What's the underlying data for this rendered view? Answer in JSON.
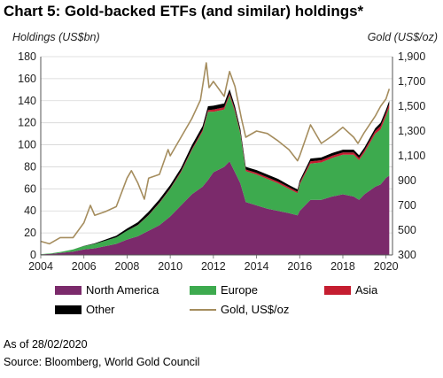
{
  "chart_data": {
    "type": "area",
    "title": "Chart 5: Gold-backed ETFs (and similar) holdings*",
    "ylabel": "Holdings (US$bn)",
    "y2label": "Gold (US$/oz)",
    "xlabel": "",
    "ylim": [
      0,
      180
    ],
    "y2lim": [
      300,
      1900
    ],
    "xlim": [
      2004,
      2020.3
    ],
    "x_ticks": [
      "2004",
      "2006",
      "2008",
      "2010",
      "2012",
      "2014",
      "2016",
      "2018",
      "2020"
    ],
    "y_ticks": [
      "0",
      "20",
      "40",
      "60",
      "80",
      "100",
      "120",
      "140",
      "160",
      "180"
    ],
    "y2_ticks": [
      "300",
      "500",
      "700",
      "900",
      "1,100",
      "1,300",
      "1,500",
      "1,700",
      "1,900"
    ],
    "x": [
      2004,
      2004.5,
      2005,
      2005.5,
      2006,
      2006.5,
      2007,
      2007.5,
      2008,
      2008.5,
      2009,
      2009.5,
      2010,
      2010.5,
      2011,
      2011.5,
      2011.75,
      2012,
      2012.5,
      2012.75,
      2013,
      2013.25,
      2013.5,
      2014,
      2014.5,
      2015,
      2015.5,
      2015.9,
      2016,
      2016.5,
      2017,
      2017.5,
      2018,
      2018.5,
      2018.75,
      2019,
      2019.5,
      2019.75,
      2020,
      2020.15
    ],
    "series": [
      {
        "name": "North America",
        "color": "#7b2a6b",
        "values": [
          0.5,
          1,
          2,
          3,
          5,
          6,
          8,
          10,
          14,
          17,
          22,
          27,
          35,
          45,
          55,
          62,
          68,
          75,
          80,
          85,
          75,
          65,
          48,
          45,
          42,
          40,
          38,
          36,
          40,
          50,
          50,
          53,
          55,
          53,
          50,
          55,
          62,
          64,
          70,
          72
        ]
      },
      {
        "name": "Europe",
        "color": "#3daa4e",
        "values": [
          0.2,
          0.5,
          1,
          2,
          3,
          4,
          5,
          6,
          8,
          10,
          14,
          20,
          25,
          30,
          40,
          50,
          62,
          55,
          52,
          60,
          55,
          45,
          28,
          28,
          27,
          25,
          22,
          20,
          24,
          33,
          34,
          35,
          36,
          38,
          36,
          38,
          48,
          50,
          56,
          62
        ]
      },
      {
        "name": "Asia",
        "color": "#c51d30",
        "values": [
          0,
          0,
          0,
          0,
          0,
          0,
          0,
          0,
          0,
          0.2,
          0.3,
          0.5,
          0.5,
          1,
          1,
          1.5,
          1.5,
          2,
          2,
          2,
          2,
          1.5,
          1.5,
          1.5,
          1.5,
          1.5,
          1.5,
          1.5,
          1.5,
          2,
          2,
          2,
          2,
          2,
          2,
          2,
          2.5,
          3,
          3,
          3
        ]
      },
      {
        "name": "Other",
        "color": "#000000",
        "values": [
          0,
          0,
          0,
          0,
          0.2,
          0.5,
          1,
          1.5,
          2,
          2.5,
          3,
          3,
          3,
          3,
          3.5,
          3.5,
          3.5,
          3.5,
          3.5,
          3.5,
          3,
          3,
          2.5,
          2.5,
          2.5,
          2.5,
          2,
          2,
          2,
          2.5,
          2.5,
          2.5,
          2.5,
          2.5,
          2.5,
          2.5,
          2.5,
          3,
          3,
          3
        ]
      }
    ],
    "gold": {
      "name": "Gold, US$/oz",
      "color": "#a58d5e",
      "x": [
        2004,
        2004.4,
        2004.9,
        2005.5,
        2006,
        2006.3,
        2006.5,
        2007,
        2007.5,
        2008,
        2008.2,
        2008.5,
        2008.8,
        2009,
        2009.5,
        2009.9,
        2010,
        2010.5,
        2011,
        2011.4,
        2011.67,
        2011.8,
        2012,
        2012.5,
        2012.75,
        2013,
        2013.3,
        2013.5,
        2014,
        2014.5,
        2015,
        2015.5,
        2015.9,
        2016,
        2016.5,
        2017,
        2017.5,
        2018,
        2018.5,
        2018.7,
        2019,
        2019.5,
        2019.75,
        2020,
        2020.15
      ],
      "values": [
        410,
        390,
        440,
        440,
        560,
        700,
        620,
        650,
        690,
        920,
        980,
        880,
        750,
        920,
        950,
        1150,
        1100,
        1250,
        1400,
        1550,
        1850,
        1650,
        1700,
        1580,
        1780,
        1660,
        1400,
        1250,
        1300,
        1280,
        1220,
        1150,
        1060,
        1100,
        1350,
        1200,
        1260,
        1330,
        1250,
        1200,
        1290,
        1420,
        1500,
        1560,
        1640
      ]
    },
    "legend": "bottom",
    "grid": true
  },
  "notes": {
    "as_of": "As of 28/02/2020",
    "source": "Source: Bloomberg, World Gold Council"
  }
}
